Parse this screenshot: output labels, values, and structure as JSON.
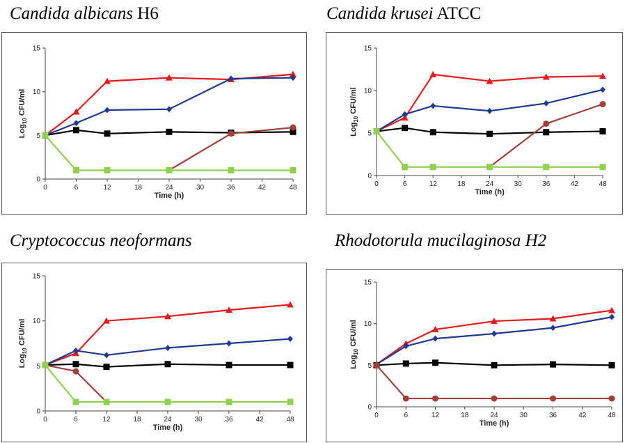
{
  "chart_data": [
    {
      "type": "line",
      "title_italic": "Candida albicans",
      "title_plain": " H6",
      "xlabel": "Time (h)",
      "ylabel_prefix": "Log",
      "ylabel_sub": "10",
      "ylabel_suffix": " CFU/ml",
      "xlim": [
        0,
        48
      ],
      "ylim": [
        0,
        15
      ],
      "xticks": [
        0,
        6,
        12,
        18,
        24,
        30,
        36,
        42,
        48
      ],
      "yticks": [
        0,
        5,
        10,
        15
      ],
      "series": [
        {
          "color": "#e41a1c",
          "marker": "triangle",
          "x": [
            0,
            6,
            12,
            24,
            36,
            48
          ],
          "y": [
            5,
            7.7,
            11.2,
            11.6,
            11.4,
            12.0
          ]
        },
        {
          "color": "#1f3a93",
          "marker": "diamond",
          "x": [
            0,
            6,
            12,
            24,
            36,
            48
          ],
          "y": [
            5,
            6.4,
            7.9,
            8.0,
            11.5,
            11.6
          ]
        },
        {
          "color": "#000000",
          "marker": "square",
          "x": [
            0,
            6,
            12,
            24,
            36,
            48
          ],
          "y": [
            5,
            5.6,
            5.2,
            5.4,
            5.3,
            5.4
          ]
        },
        {
          "color": "#a0403a",
          "marker": "circle",
          "x": [
            24,
            36,
            48
          ],
          "y": [
            1,
            5.2,
            5.9
          ]
        },
        {
          "color": "#8fd14f",
          "marker": "square",
          "x": [
            0,
            6,
            12,
            24,
            36,
            48
          ],
          "y": [
            5,
            1,
            1,
            1,
            1,
            1
          ]
        }
      ]
    },
    {
      "type": "line",
      "title_italic": "Candida krusei",
      "title_plain": " ATCC",
      "xlabel": "Time (h)",
      "ylabel_prefix": "Log",
      "ylabel_sub": "10",
      "ylabel_suffix": " CFU/ml",
      "xlim": [
        0,
        48
      ],
      "ylim": [
        0,
        15
      ],
      "xticks": [
        0,
        6,
        12,
        18,
        24,
        30,
        36,
        42,
        48
      ],
      "yticks": [
        0,
        5,
        10,
        15
      ],
      "series": [
        {
          "color": "#e41a1c",
          "marker": "triangle",
          "x": [
            0,
            6,
            12,
            24,
            36,
            48
          ],
          "y": [
            5.2,
            6.8,
            11.9,
            11.1,
            11.6,
            11.7
          ]
        },
        {
          "color": "#1f3a93",
          "marker": "diamond",
          "x": [
            0,
            6,
            12,
            24,
            36,
            48
          ],
          "y": [
            5.2,
            7.2,
            8.2,
            7.6,
            8.5,
            10.1
          ]
        },
        {
          "color": "#000000",
          "marker": "square",
          "x": [
            0,
            6,
            12,
            24,
            36,
            48
          ],
          "y": [
            5.2,
            5.6,
            5.1,
            4.9,
            5.1,
            5.2
          ]
        },
        {
          "color": "#a0403a",
          "marker": "circle",
          "x": [
            24,
            36,
            48
          ],
          "y": [
            1,
            6.1,
            8.4
          ]
        },
        {
          "color": "#8fd14f",
          "marker": "square",
          "x": [
            0,
            6,
            12,
            24,
            36,
            48
          ],
          "y": [
            5.2,
            1,
            1,
            1,
            1,
            1
          ]
        }
      ]
    },
    {
      "type": "line",
      "title_italic": "Cryptococcus neoformans",
      "title_plain": "",
      "xlabel": "Time (h)",
      "ylabel_prefix": "Log",
      "ylabel_sub": "10",
      "ylabel_suffix": " CFU/ml",
      "xlim": [
        0,
        48
      ],
      "ylim": [
        0,
        15
      ],
      "xticks": [
        0,
        6,
        12,
        18,
        24,
        30,
        36,
        42,
        48
      ],
      "yticks": [
        0,
        5,
        10,
        15
      ],
      "series": [
        {
          "color": "#e41a1c",
          "marker": "triangle",
          "x": [
            0,
            6,
            12,
            24,
            36,
            48
          ],
          "y": [
            5.1,
            6.4,
            10.0,
            10.5,
            11.2,
            11.8
          ]
        },
        {
          "color": "#1f3a93",
          "marker": "diamond",
          "x": [
            0,
            6,
            12,
            24,
            36,
            48
          ],
          "y": [
            5.1,
            6.7,
            6.2,
            7.0,
            7.5,
            8.0
          ]
        },
        {
          "color": "#000000",
          "marker": "square",
          "x": [
            0,
            6,
            12,
            24,
            36,
            48
          ],
          "y": [
            5.1,
            5.2,
            4.9,
            5.2,
            5.1,
            5.1
          ]
        },
        {
          "color": "#a0403a",
          "marker": "circle",
          "x": [
            0,
            6,
            12
          ],
          "y": [
            5.1,
            4.4,
            1
          ]
        },
        {
          "color": "#8fd14f",
          "marker": "square",
          "x": [
            0,
            6,
            12,
            24,
            36,
            48
          ],
          "y": [
            5.1,
            1,
            1,
            1,
            1,
            1
          ]
        }
      ]
    },
    {
      "type": "line",
      "title_italic": "Rhodotorula mucilaginosa H2",
      "title_plain": "",
      "xlabel": "Time (h)",
      "ylabel_prefix": "Log",
      "ylabel_sub": "10",
      "ylabel_suffix": " CFU/ml",
      "xlim": [
        0,
        48
      ],
      "ylim": [
        0,
        15
      ],
      "xticks": [
        0,
        6,
        12,
        18,
        24,
        30,
        36,
        42,
        48
      ],
      "yticks": [
        0,
        5,
        10,
        15
      ],
      "series": [
        {
          "color": "#e41a1c",
          "marker": "triangle",
          "x": [
            0,
            6,
            12,
            24,
            36,
            48
          ],
          "y": [
            5.1,
            7.6,
            9.3,
            10.3,
            10.6,
            11.6
          ]
        },
        {
          "color": "#1f3a93",
          "marker": "diamond",
          "x": [
            0,
            6,
            12,
            24,
            36,
            48
          ],
          "y": [
            5.1,
            7.3,
            8.2,
            8.8,
            9.5,
            10.8
          ]
        },
        {
          "color": "#000000",
          "marker": "square",
          "x": [
            0,
            6,
            12,
            24,
            36,
            48
          ],
          "y": [
            5.0,
            5.2,
            5.3,
            5.0,
            5.1,
            5.0
          ]
        },
        {
          "color": "#a0403a",
          "marker": "circle",
          "x": [
            0,
            6,
            12,
            24,
            36,
            48
          ],
          "y": [
            5.0,
            1,
            1,
            1,
            1,
            1
          ]
        }
      ]
    }
  ]
}
